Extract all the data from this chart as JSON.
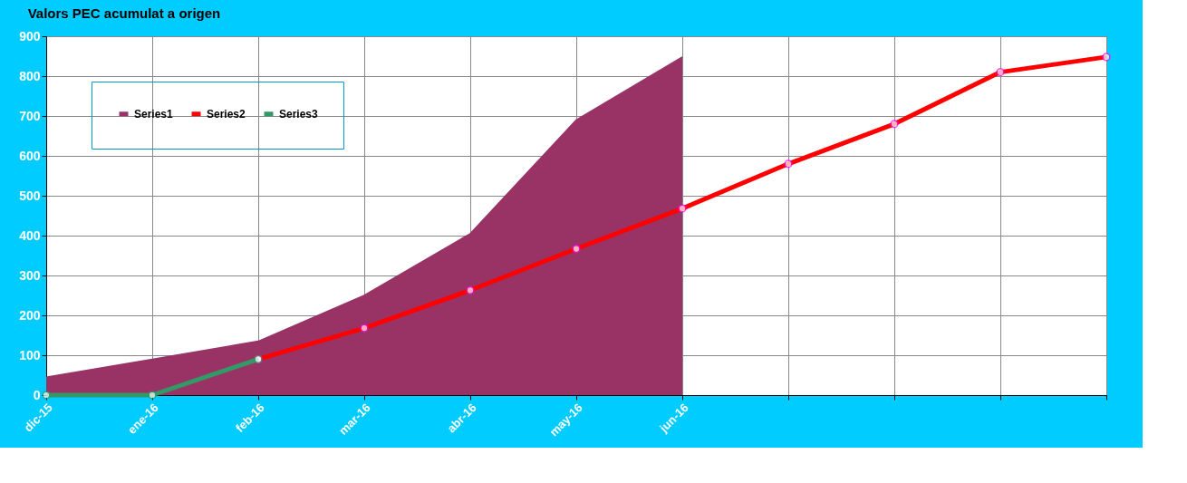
{
  "chart_data": {
    "type": "line",
    "title": "Valors PEC acumulat a origen",
    "categories": [
      "dic-15",
      "ene-16",
      "feb-16",
      "mar-16",
      "abr-16",
      "may-16",
      "jun-16",
      null,
      null,
      null,
      null
    ],
    "series": [
      {
        "name": "Series1",
        "type": "area",
        "color": "#993366",
        "values": [
          45,
          90,
          135,
          250,
          405,
          690,
          848,
          null,
          null,
          null,
          null
        ]
      },
      {
        "name": "Series2",
        "color": "#ff0000",
        "marker": "circle",
        "values": [
          null,
          null,
          90,
          168,
          263,
          367,
          468,
          580,
          680,
          810,
          848
        ]
      },
      {
        "name": "Series3",
        "color": "#339966",
        "marker": "circle",
        "values": [
          0,
          0,
          90,
          null,
          null,
          null,
          null,
          null,
          null,
          null,
          null
        ]
      }
    ],
    "ylim": [
      0,
      900
    ],
    "yticks": [
      0,
      100,
      200,
      300,
      400,
      500,
      600,
      700,
      800,
      900
    ],
    "grid": true,
    "legend": "top left",
    "line_style": "solid"
  }
}
